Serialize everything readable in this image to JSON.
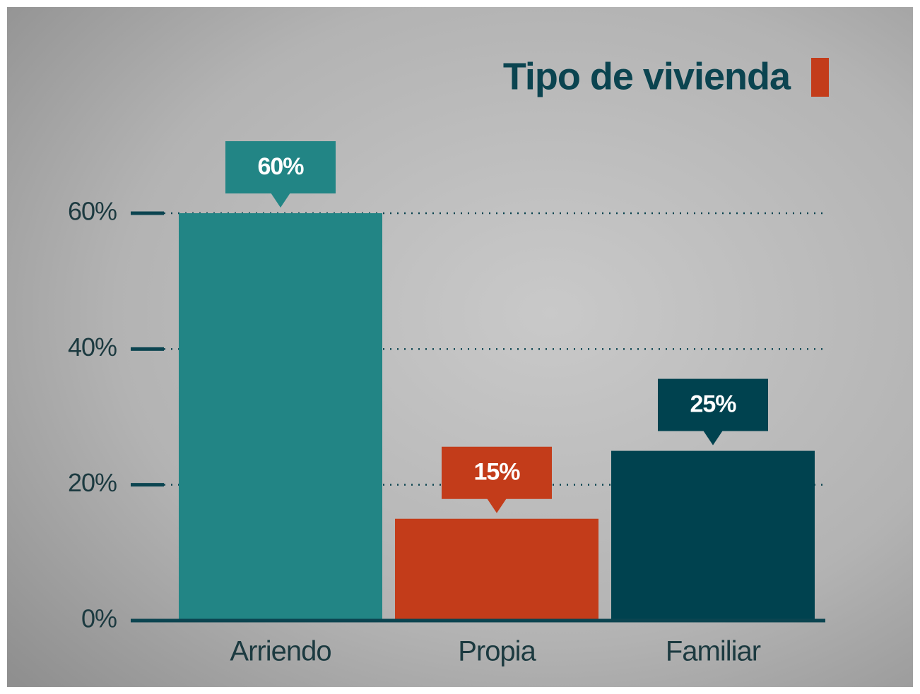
{
  "chart_data": {
    "type": "bar",
    "title": "Tipo de vivienda",
    "categories": [
      "Arriendo",
      "Propia",
      "Familiar"
    ],
    "values": [
      60,
      15,
      25
    ],
    "value_labels": [
      "60%",
      "15%",
      "25%"
    ],
    "colors": [
      "#228585",
      "#c33c1a",
      "#00424f"
    ],
    "ylim": [
      0,
      60
    ],
    "yticks": [
      {
        "value": 0,
        "label": "0%"
      },
      {
        "value": 20,
        "label": "20%"
      },
      {
        "value": 40,
        "label": "40%"
      },
      {
        "value": 60,
        "label": "60%"
      }
    ],
    "grid": true
  }
}
